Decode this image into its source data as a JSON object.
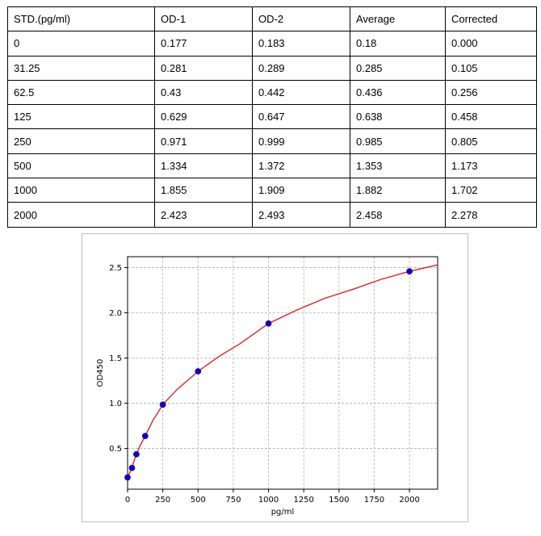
{
  "table": {
    "headers": [
      "STD.(pg/ml)",
      "OD-1",
      "OD-2",
      "Average",
      "Corrected"
    ],
    "rows": [
      [
        "0",
        "0.177",
        "0.183",
        "0.18",
        "0.000"
      ],
      [
        "31.25",
        "0.281",
        "0.289",
        "0.285",
        "0.105"
      ],
      [
        "62.5",
        "0.43",
        "0.442",
        "0.436",
        "0.256"
      ],
      [
        "125",
        "0.629",
        "0.647",
        "0.638",
        "0.458"
      ],
      [
        "250",
        "0.971",
        "0.999",
        "0.985",
        "0.805"
      ],
      [
        "500",
        "1.334",
        "1.372",
        "1.353",
        "1.173"
      ],
      [
        "1000",
        "1.855",
        "1.909",
        "1.882",
        "1.702"
      ],
      [
        "2000",
        "2.423",
        "2.493",
        "2.458",
        "2.278"
      ]
    ]
  },
  "chart_data": {
    "type": "scatter",
    "title": "",
    "xlabel": "pg/ml",
    "ylabel": "OD450",
    "xlim": [
      0,
      2200
    ],
    "ylim": [
      0.05,
      2.62
    ],
    "xticks": [
      0,
      250,
      500,
      750,
      1000,
      1250,
      1500,
      1750,
      2000
    ],
    "yticks": [
      0.5,
      1.0,
      1.5,
      2.0,
      2.5
    ],
    "ytick_labels": [
      "0.5",
      "1.0",
      "1.5",
      "2.0",
      "2.5"
    ],
    "grid": true,
    "series": [
      {
        "kind": "points",
        "color": "#0000cc",
        "x": [
          0,
          31.25,
          62.5,
          125,
          250,
          500,
          1000,
          2000
        ],
        "y": [
          0.18,
          0.285,
          0.436,
          0.638,
          0.985,
          1.353,
          1.882,
          2.458
        ]
      },
      {
        "kind": "fit-curve",
        "color": "#dd2222",
        "x": [
          0,
          15,
          31.25,
          45,
          62.5,
          90,
          125,
          180,
          250,
          350,
          500,
          650,
          800,
          1000,
          1200,
          1400,
          1600,
          1800,
          2000,
          2200
        ],
        "y": [
          0.18,
          0.232,
          0.285,
          0.36,
          0.436,
          0.535,
          0.638,
          0.81,
          0.985,
          1.15,
          1.353,
          1.52,
          1.66,
          1.882,
          2.03,
          2.16,
          2.26,
          2.37,
          2.458,
          2.53
        ]
      }
    ]
  }
}
